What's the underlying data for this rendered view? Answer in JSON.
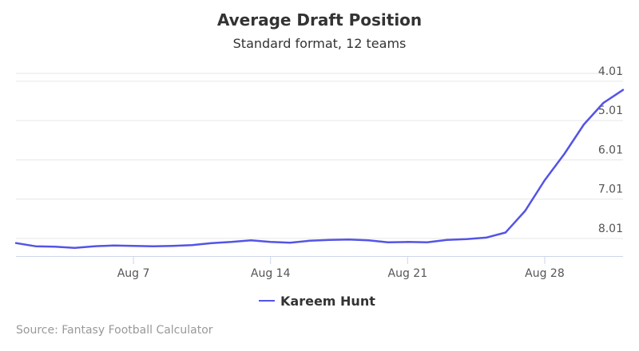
{
  "chart_data": {
    "type": "line",
    "title": "Average Draft Position",
    "subtitle": "Standard format, 12 teams",
    "xlabel": "",
    "ylabel": "",
    "x_tick_labels": [
      "Aug 7",
      "Aug 14",
      "Aug 21",
      "Aug 28"
    ],
    "y_tick_labels": [
      "4.01",
      "5.01",
      "6.01",
      "7.01",
      "8.01"
    ],
    "y_tick_values": [
      4,
      5,
      6,
      7,
      8
    ],
    "y_reversed": true,
    "ylim": [
      3.8,
      8.45
    ],
    "x_start_day": 1,
    "x_end_day": 32,
    "grid": "horizontal",
    "legend_position": "bottom-center",
    "series": [
      {
        "name": "Kareem Hunt",
        "color": "#5454e6",
        "x": [
          1,
          2,
          3,
          4,
          5,
          6,
          7,
          8,
          9,
          10,
          11,
          12,
          13,
          14,
          15,
          16,
          17,
          18,
          19,
          20,
          21,
          22,
          23,
          24,
          25,
          26,
          27,
          28,
          29,
          30,
          31,
          32
        ],
        "values": [
          8.12,
          8.2,
          8.21,
          8.24,
          8.2,
          8.18,
          8.19,
          8.2,
          8.19,
          8.17,
          8.12,
          8.09,
          8.05,
          8.09,
          8.11,
          8.06,
          8.04,
          8.03,
          8.05,
          8.1,
          8.09,
          8.1,
          8.04,
          8.02,
          7.98,
          7.85,
          7.3,
          6.52,
          5.85,
          5.1,
          4.55,
          4.22
        ]
      }
    ]
  },
  "credits": "Source: Fantasy Football Calculator"
}
